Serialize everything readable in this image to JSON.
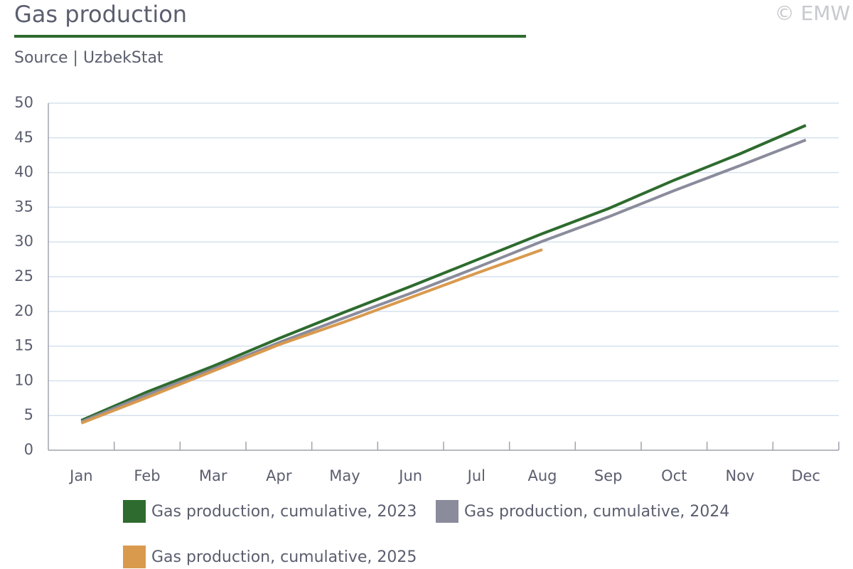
{
  "chart_data": {
    "type": "line",
    "title": "Gas production",
    "subtitle": "Source | UzbekStat",
    "credit": "© EMW",
    "categories": [
      "Jan",
      "Feb",
      "Mar",
      "Apr",
      "May",
      "Jun",
      "Jul",
      "Aug",
      "Sep",
      "Oct",
      "Nov",
      "Dec"
    ],
    "series": [
      {
        "name": "Gas production, cumulative, 2023",
        "color": "#2e6b2e",
        "values": [
          4.3,
          8.4,
          12.1,
          16.1,
          19.9,
          23.6,
          27.4,
          31.2,
          34.8,
          38.9,
          42.7,
          46.8
        ]
      },
      {
        "name": "Gas production, cumulative, 2024",
        "color": "#8a8c9c",
        "values": [
          4.1,
          8.0,
          11.7,
          15.5,
          19.1,
          22.6,
          26.3,
          30.1,
          33.6,
          37.4,
          41.0,
          44.7
        ]
      },
      {
        "name": "Gas production, cumulative, 2025",
        "color": "#d99a4e",
        "values": [
          3.9,
          7.6,
          11.4,
          15.2,
          18.5,
          22.0,
          25.5,
          28.9,
          null,
          null,
          null,
          null
        ]
      }
    ],
    "ylim": [
      0,
      50
    ],
    "yticks": [
      0,
      5,
      10,
      15,
      20,
      25,
      30,
      35,
      40,
      45,
      50
    ],
    "grid": true
  }
}
